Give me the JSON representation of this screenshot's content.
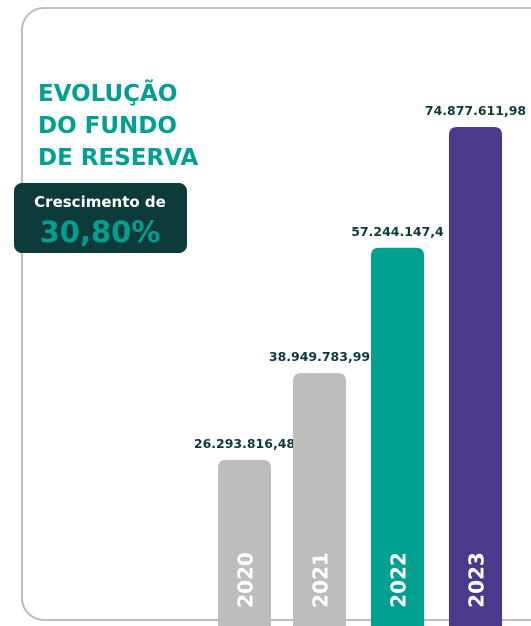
{
  "chart_data": {
    "type": "bar",
    "title": [
      "EVOLUÇÃO",
      "DO FUNDO",
      "DE RESERVA"
    ],
    "annotation": {
      "label": "Crescimento de",
      "value": "30,80%"
    },
    "categories": [
      "2020",
      "2021",
      "2022",
      "2023"
    ],
    "values": [
      26293816.48,
      38949783.99,
      57244147.4,
      74877611.98
    ],
    "value_labels": [
      "26.293.816,48",
      "38.949.783,99",
      "57.244.147,4",
      "74.877.611,98"
    ],
    "colors": [
      "#bdbdbb",
      "#bdbdbb",
      "#00a091",
      "#4b3a8c"
    ]
  }
}
